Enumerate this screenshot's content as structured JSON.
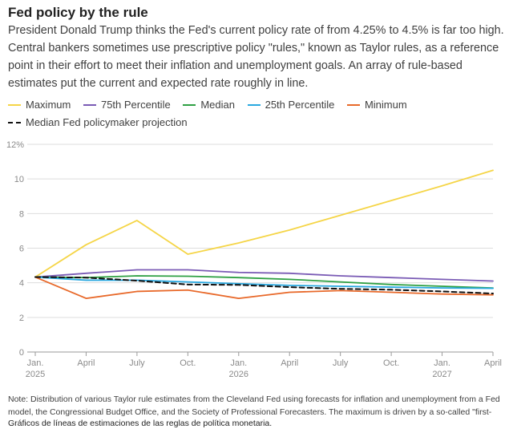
{
  "header": {
    "title": "Fed policy by the rule",
    "subtitle": "President Donald Trump thinks the Fed's current policy rate of from 4.25% to 4.5% is far too high. Central bankers sometimes use prescriptive policy \"rules,\" known as Taylor rules, as a reference point in their effort to meet their inflation and unemployment goals. An array of rule-based estimates put the current and expected rate roughly in line."
  },
  "chart_data": {
    "type": "line",
    "y_ticks": [
      "0",
      "2",
      "4",
      "6",
      "8",
      "10",
      "12%"
    ],
    "y_tick_values": [
      0,
      2,
      4,
      6,
      8,
      10,
      12
    ],
    "ylim": [
      0,
      12
    ],
    "xlim": [
      0,
      9
    ],
    "x_ticks": [
      {
        "x": 0,
        "line1": "Jan.",
        "line2": "2025"
      },
      {
        "x": 1,
        "line1": "April",
        "line2": ""
      },
      {
        "x": 2,
        "line1": "July",
        "line2": ""
      },
      {
        "x": 3,
        "line1": "Oct.",
        "line2": ""
      },
      {
        "x": 4,
        "line1": "Jan.",
        "line2": "2026"
      },
      {
        "x": 5,
        "line1": "April",
        "line2": ""
      },
      {
        "x": 6,
        "line1": "July",
        "line2": ""
      },
      {
        "x": 7,
        "line1": "Oct.",
        "line2": ""
      },
      {
        "x": 8,
        "line1": "Jan.",
        "line2": "2027"
      },
      {
        "x": 9,
        "line1": "April",
        "line2": ""
      }
    ],
    "grid": true,
    "legend_position": "top",
    "series": [
      {
        "name": "Maximum",
        "color": "#f5d547",
        "dashed": false,
        "x": [
          0,
          1,
          2,
          3,
          4,
          5,
          6,
          7,
          8,
          9
        ],
        "values": [
          4.33,
          6.2,
          7.6,
          5.65,
          6.3,
          7.05,
          7.9,
          8.75,
          9.6,
          10.5
        ]
      },
      {
        "name": "75th Percentile",
        "color": "#7a5bb5",
        "dashed": false,
        "x": [
          0,
          1,
          2,
          3,
          4,
          5,
          6,
          7,
          8,
          9
        ],
        "values": [
          4.33,
          4.55,
          4.75,
          4.75,
          4.6,
          4.55,
          4.4,
          4.3,
          4.2,
          4.1
        ]
      },
      {
        "name": "Median",
        "color": "#2ea043",
        "dashed": false,
        "x": [
          0,
          1,
          2,
          3,
          4,
          5,
          6,
          7,
          8,
          9
        ],
        "values": [
          4.33,
          4.3,
          4.4,
          4.38,
          4.3,
          4.2,
          4.05,
          3.9,
          3.8,
          3.7
        ]
      },
      {
        "name": "25th Percentile",
        "color": "#29a8e0",
        "dashed": false,
        "x": [
          0,
          1,
          2,
          3,
          4,
          5,
          6,
          7,
          8,
          9
        ],
        "values": [
          4.33,
          4.15,
          4.15,
          4.05,
          3.95,
          3.85,
          3.8,
          3.75,
          3.7,
          3.68
        ]
      },
      {
        "name": "Minimum",
        "color": "#e8692a",
        "dashed": false,
        "x": [
          0,
          1,
          2,
          3,
          4,
          5,
          6,
          7,
          8,
          9
        ],
        "values": [
          4.33,
          3.1,
          3.5,
          3.58,
          3.1,
          3.45,
          3.55,
          3.45,
          3.35,
          3.3
        ]
      },
      {
        "name": "Median Fed policymaker projection",
        "color": "#111111",
        "dashed": true,
        "x": [
          0,
          1,
          2,
          3,
          4,
          5,
          6,
          7,
          8,
          9
        ],
        "values": [
          4.33,
          4.3,
          4.12,
          3.9,
          3.88,
          3.75,
          3.65,
          3.6,
          3.5,
          3.38
        ]
      }
    ]
  },
  "footer": {
    "note": "Note: Distribution of various Taylor rule estimates from the Cleveland Fed using forecasts for inflation and unemployment from a Fed model, the Congressional Budget Office, and the Society of Professional Forecasters. The maximum is driven by a so-called \"first-",
    "caption": "Gráficos de líneas de estimaciones de las reglas de política monetaria."
  }
}
